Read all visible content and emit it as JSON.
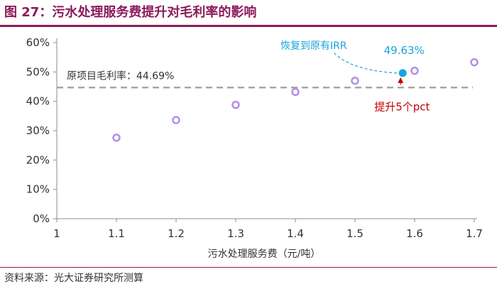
{
  "figure": {
    "title": "图 27：污水处理服务费提升对毛利率的影响",
    "source": "资料来源：光大证券研究所测算"
  },
  "colors": {
    "title": "#8c1a5b",
    "marker": "#b28fe8",
    "highlight": "#1aa3dc",
    "reference_line": "#a6a6a6",
    "note_red": "#c00000",
    "note_blue": "#1aa3dc"
  },
  "chart_data": {
    "type": "scatter",
    "title": "",
    "xlabel": "污水处理服务费（元/吨）",
    "ylabel": "",
    "xlim": [
      1,
      1.7
    ],
    "ylim": [
      0,
      60
    ],
    "x_ticks": [
      "1",
      "1.1",
      "1.2",
      "1.3",
      "1.4",
      "1.5",
      "1.6",
      "1.7"
    ],
    "y_ticks": [
      "0%",
      "10%",
      "20%",
      "30%",
      "40%",
      "50%",
      "60%"
    ],
    "grid": false,
    "points": [
      {
        "x": 1.1,
        "y": 27.6
      },
      {
        "x": 1.2,
        "y": 33.6
      },
      {
        "x": 1.3,
        "y": 38.8
      },
      {
        "x": 1.4,
        "y": 43.2
      },
      {
        "x": 1.5,
        "y": 47.0
      },
      {
        "x": 1.6,
        "y": 50.4
      },
      {
        "x": 1.7,
        "y": 53.3
      }
    ],
    "highlight_point": {
      "x": 1.58,
      "y": 49.63,
      "label": "49.63%"
    },
    "reference_line": {
      "y": 44.69,
      "label": "原项目毛利率：44.69%"
    },
    "annotations": {
      "irr_note": "恢复到原有IRR",
      "increase_note": "提升5个pct"
    }
  }
}
